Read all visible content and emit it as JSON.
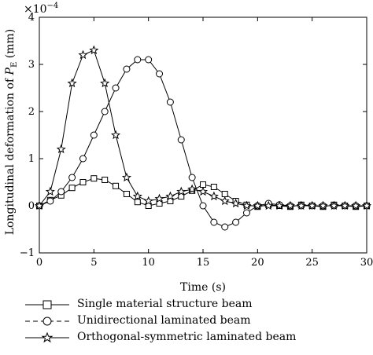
{
  "chart_data": {
    "type": "line",
    "ylabel": "Longitudinal deformation of P_E (mm)",
    "ylabel_main": "Longitudinal deformation of ",
    "ylabel_var": "P",
    "ylabel_sub": "E",
    "ylabel_unit": " (mm)",
    "xlabel": "Time (s)",
    "exponent_label": "×10",
    "exponent_power": "−4",
    "xlim": [
      0,
      30
    ],
    "ylim": [
      -1,
      4
    ],
    "xticks": [
      0,
      5,
      10,
      15,
      20,
      25,
      30
    ],
    "yticks": [
      -1,
      0,
      1,
      2,
      3,
      4
    ],
    "xtick_labels": [
      "0",
      "5",
      "10",
      "15",
      "20",
      "25",
      "30"
    ],
    "ytick_labels": [
      "−1",
      "0",
      "1",
      "2",
      "3",
      "4"
    ],
    "series": [
      {
        "name": "Single material structure beam",
        "marker": "square",
        "x": [
          0,
          1,
          2,
          3,
          4,
          5,
          6,
          7,
          8,
          9,
          10,
          11,
          12,
          13,
          14,
          15,
          16,
          17,
          18,
          19,
          20,
          21,
          22,
          23,
          24,
          25,
          26,
          27,
          28,
          29,
          30
        ],
        "y": [
          0,
          0.12,
          0.22,
          0.38,
          0.5,
          0.58,
          0.55,
          0.42,
          0.25,
          0.08,
          0.0,
          0.05,
          0.1,
          0.2,
          0.32,
          0.45,
          0.4,
          0.25,
          0.1,
          0.02,
          -0.02,
          0.02,
          0.0,
          -0.02,
          0.02,
          0.0,
          -0.02,
          0.02,
          0.0,
          -0.02,
          0.0
        ]
      },
      {
        "name": "Unidirectional laminated beam",
        "marker": "circle",
        "x": [
          0,
          1,
          2,
          3,
          4,
          5,
          6,
          7,
          8,
          9,
          10,
          11,
          12,
          13,
          14,
          15,
          16,
          17,
          18,
          19,
          20,
          21,
          22,
          23,
          24,
          25,
          26,
          27,
          28,
          29,
          30
        ],
        "y": [
          0,
          0.1,
          0.3,
          0.6,
          1.0,
          1.5,
          2.0,
          2.5,
          2.9,
          3.1,
          3.1,
          2.8,
          2.2,
          1.4,
          0.6,
          0.0,
          -0.35,
          -0.45,
          -0.35,
          -0.15,
          0.0,
          0.05,
          0.02,
          0.0,
          0.0,
          0.0,
          0.0,
          0.0,
          0.0,
          0.0,
          0.0
        ]
      },
      {
        "name": "Orthogonal-symmetric laminated beam",
        "marker": "star",
        "x": [
          0,
          1,
          2,
          3,
          4,
          5,
          6,
          7,
          8,
          9,
          10,
          11,
          12,
          13,
          14,
          15,
          16,
          17,
          18,
          19,
          20,
          21,
          22,
          23,
          24,
          25,
          26,
          27,
          28,
          29,
          30
        ],
        "y": [
          0,
          0.3,
          1.2,
          2.6,
          3.2,
          3.3,
          2.6,
          1.5,
          0.6,
          0.2,
          0.1,
          0.15,
          0.2,
          0.3,
          0.35,
          0.3,
          0.2,
          0.1,
          0.05,
          0.0,
          0.0,
          0.0,
          0.0,
          0.0,
          0.0,
          0.0,
          0.0,
          0.0,
          0.0,
          0.0,
          0.0
        ]
      }
    ],
    "legend_placement": "bottom",
    "grid": false
  }
}
